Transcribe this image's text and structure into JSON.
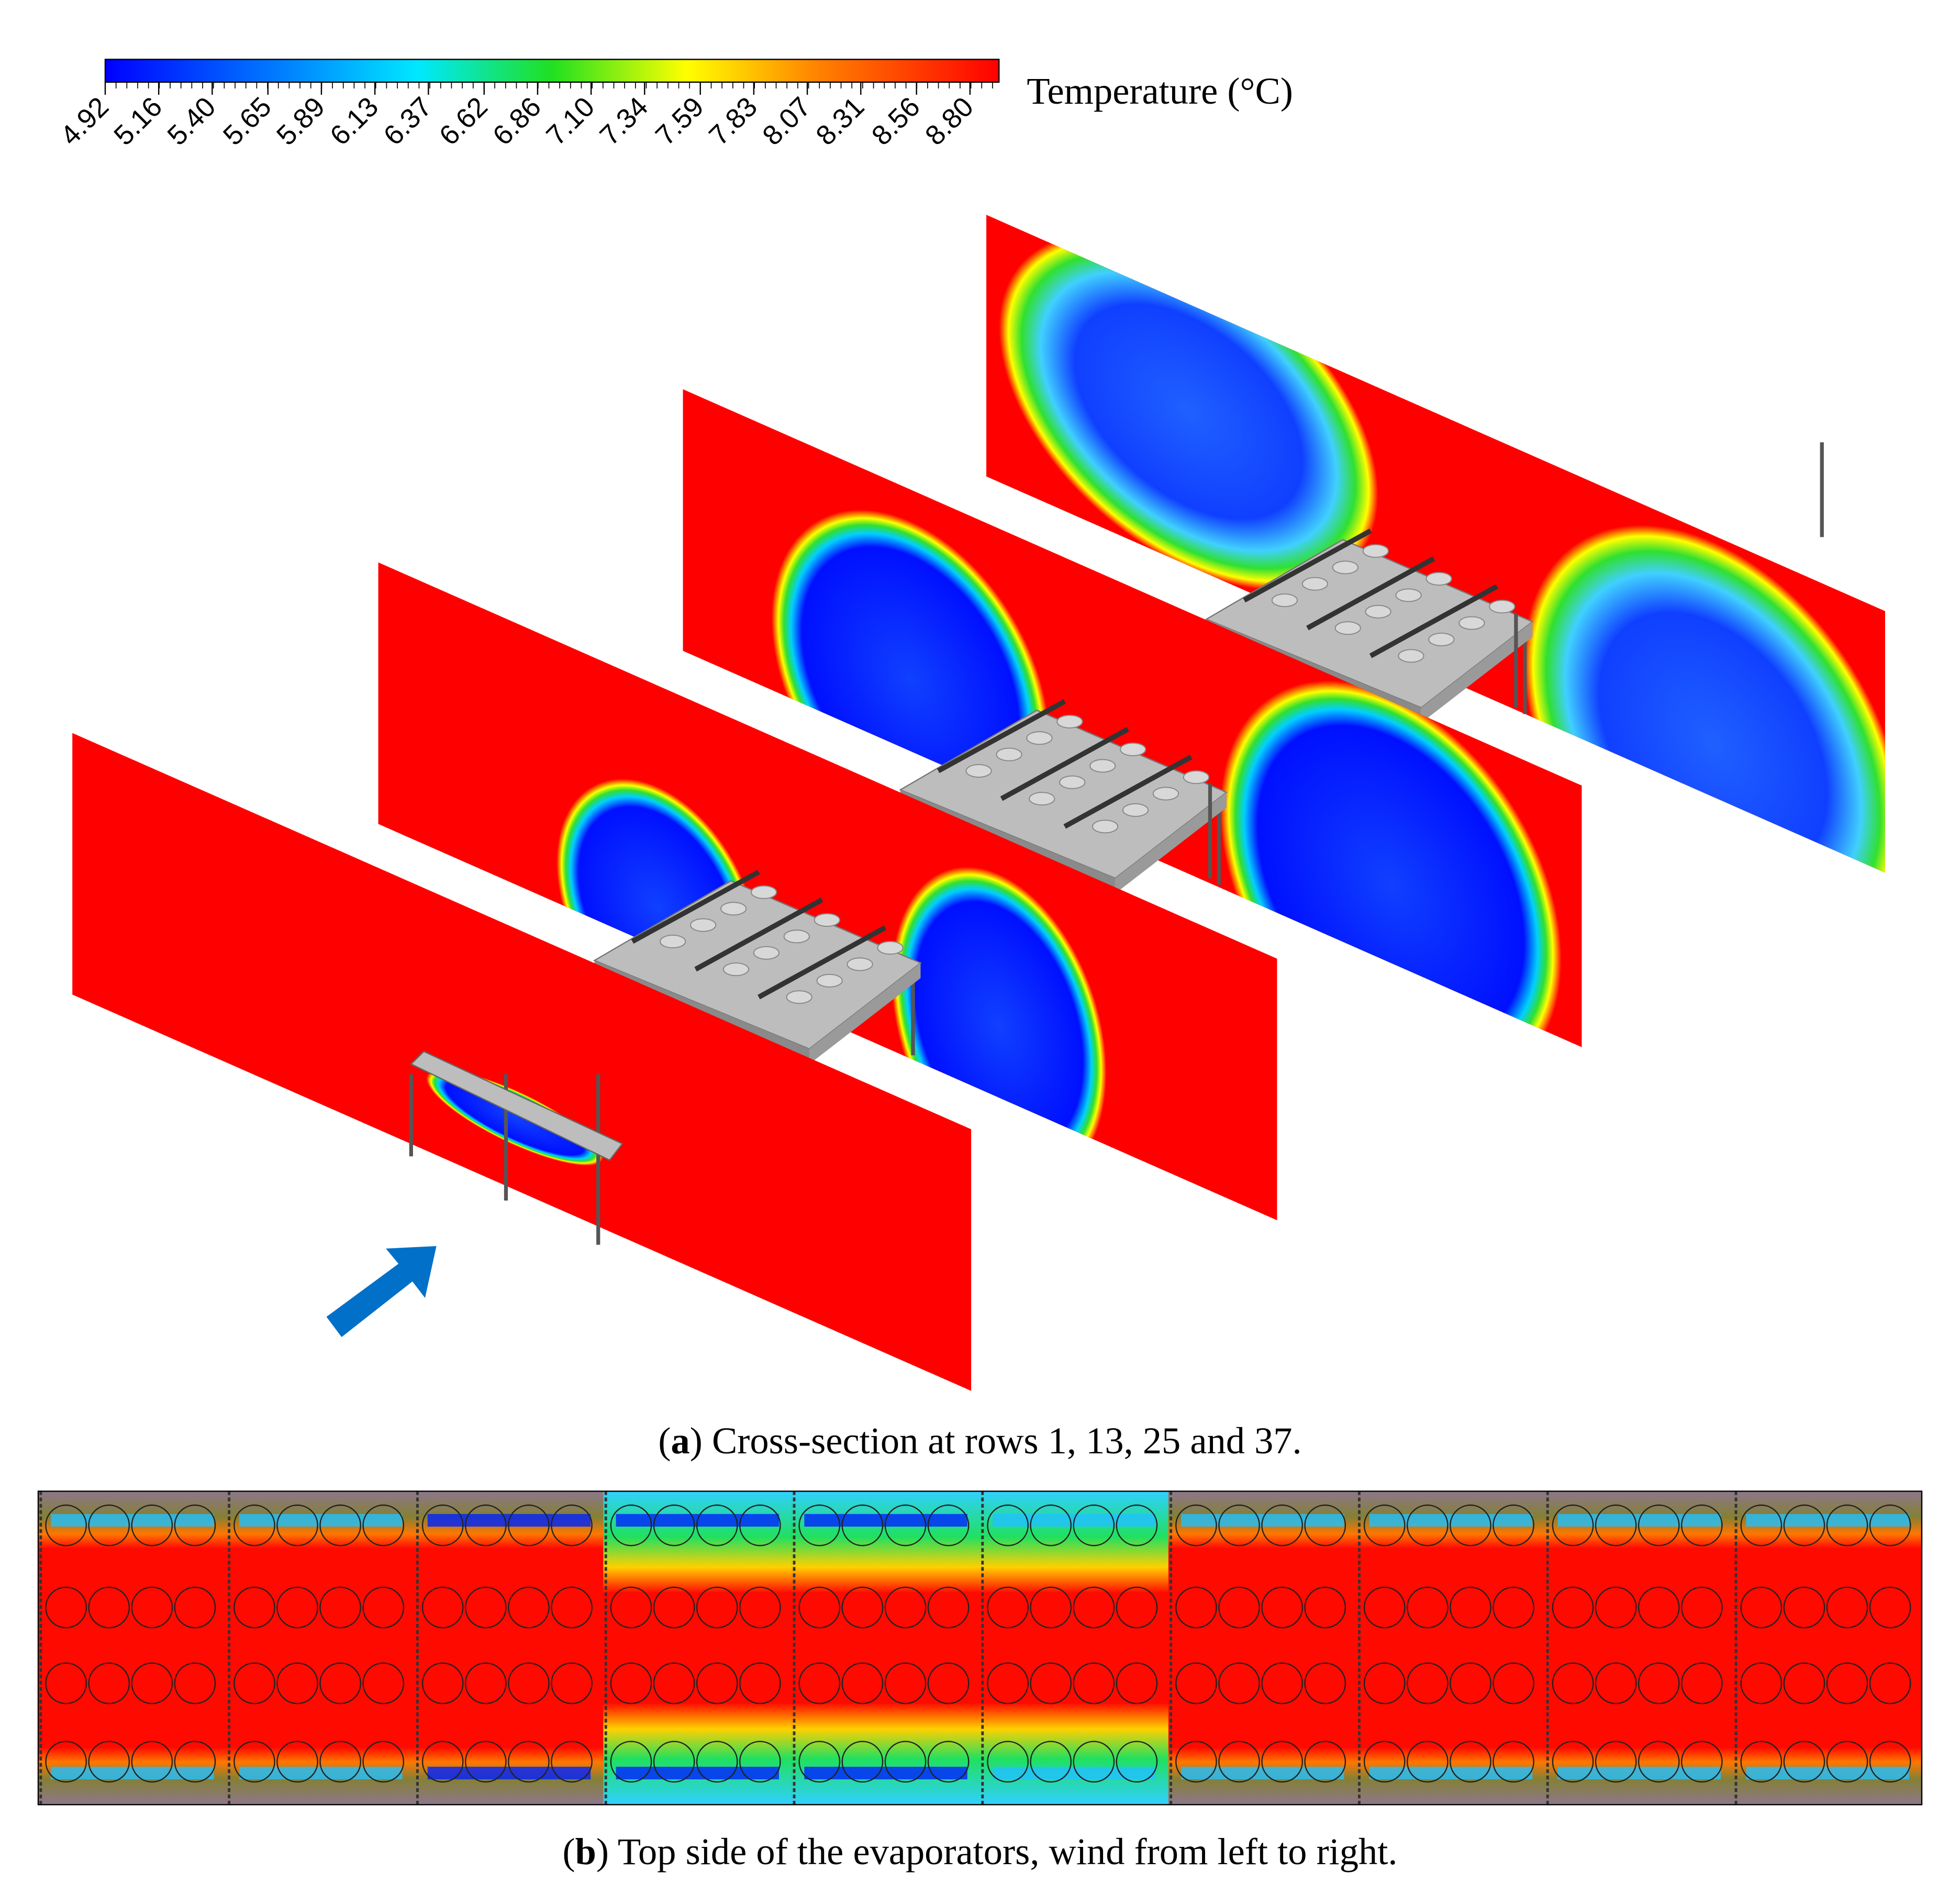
{
  "colorbar": {
    "label": "Temperature (°C)",
    "range": [
      4.92,
      8.93
    ],
    "ticks": [
      4.92,
      5.16,
      {
        "value": 5.4,
        "label": "5.40"
      },
      5.65,
      5.89,
      6.13,
      6.37,
      6.62,
      6.86,
      {
        "value": 7.1,
        "label": "7.10"
      },
      7.34,
      7.59,
      7.83,
      8.07,
      8.31,
      8.56,
      {
        "value": 8.8,
        "label": "8.80"
      }
    ]
  },
  "captions": [
    {
      "open": "(",
      "label": "a",
      "text": ") Cross-section at rows 1, 13, 25 and 37."
    },
    {
      "open": "(",
      "label": "b",
      "text": ") Top side of the evaporators, wind from left to right."
    }
  ]
}
